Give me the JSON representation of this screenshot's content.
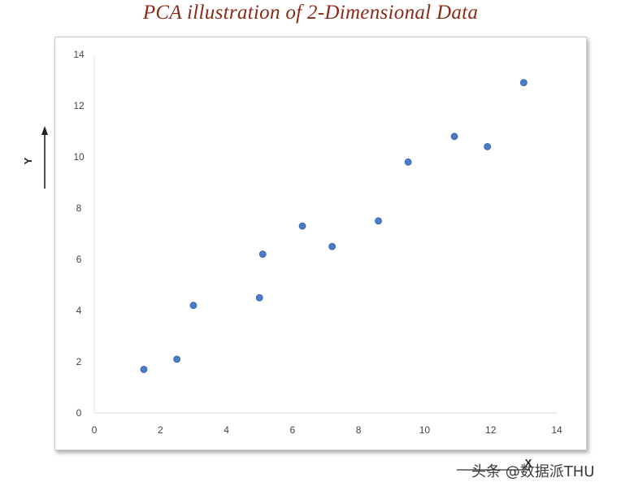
{
  "chart_data": {
    "type": "scatter",
    "title": "PCA illustration of 2-Dimensional Data",
    "xlabel": "X",
    "ylabel": "Y",
    "xlim": [
      0,
      14
    ],
    "ylim": [
      0,
      14
    ],
    "x_ticks": [
      0,
      2,
      4,
      6,
      8,
      10,
      12,
      14
    ],
    "y_ticks": [
      0,
      2,
      4,
      6,
      8,
      10,
      12,
      14
    ],
    "grid": false,
    "point_color": "#4a7cc7",
    "points": [
      {
        "x": 1.5,
        "y": 1.7
      },
      {
        "x": 2.5,
        "y": 2.1
      },
      {
        "x": 3.0,
        "y": 4.2
      },
      {
        "x": 5.0,
        "y": 4.5
      },
      {
        "x": 5.1,
        "y": 6.2
      },
      {
        "x": 6.3,
        "y": 7.3
      },
      {
        "x": 7.2,
        "y": 6.5
      },
      {
        "x": 8.6,
        "y": 7.5
      },
      {
        "x": 9.5,
        "y": 9.8
      },
      {
        "x": 10.9,
        "y": 10.8
      },
      {
        "x": 11.9,
        "y": 10.4
      },
      {
        "x": 13.0,
        "y": 12.9
      }
    ]
  },
  "watermark": "头条 @数据派THU"
}
